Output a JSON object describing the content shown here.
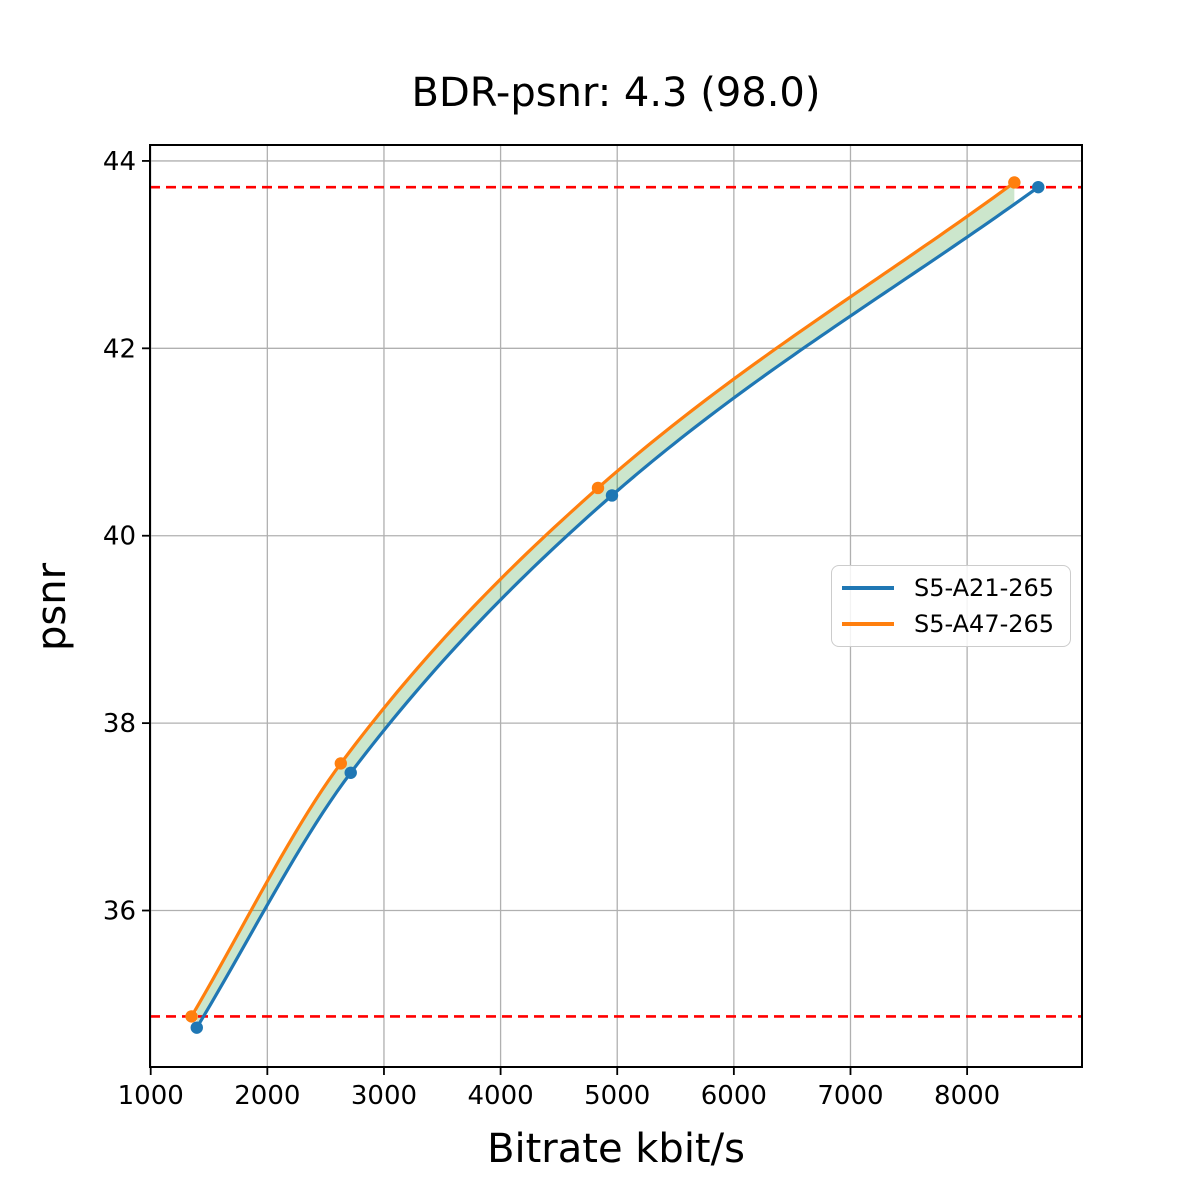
{
  "chart_data": {
    "type": "line",
    "title": "BDR-psnr: 4.3 (98.0)",
    "xlabel": "Bitrate kbit/s",
    "ylabel": "psnr",
    "xlim": [
      994,
      8985
    ],
    "ylim": [
      34.33,
      44.17
    ],
    "xticks": [
      1000,
      2000,
      3000,
      4000,
      5000,
      6000,
      7000,
      8000
    ],
    "yticks": [
      36,
      38,
      40,
      42,
      44
    ],
    "grid": true,
    "grid_color": "#b0b0b0",
    "background": "#ffffff",
    "series": [
      {
        "name": "S5-A21-265",
        "color": "#1f77b4",
        "x": [
          1395,
          2715,
          4955,
          8610
        ],
        "y": [
          34.75,
          37.47,
          40.43,
          43.72
        ]
      },
      {
        "name": "S5-A47-265",
        "color": "#ff7f0e",
        "x": [
          1350,
          2630,
          4835,
          8405
        ],
        "y": [
          34.87,
          37.57,
          40.51,
          43.77
        ]
      }
    ],
    "fill_between": {
      "color": "rgba(0,128,0,0.2)",
      "between": [
        "S5-A47-265",
        "S5-A21-265"
      ]
    },
    "ref_lines": [
      {
        "y": 43.72,
        "color": "#ff0000",
        "style": "dashed"
      },
      {
        "y": 34.87,
        "color": "#ff0000",
        "style": "dashed"
      }
    ],
    "legend": {
      "location": "center right",
      "entries": [
        "S5-A21-265",
        "S5-A47-265"
      ]
    }
  }
}
